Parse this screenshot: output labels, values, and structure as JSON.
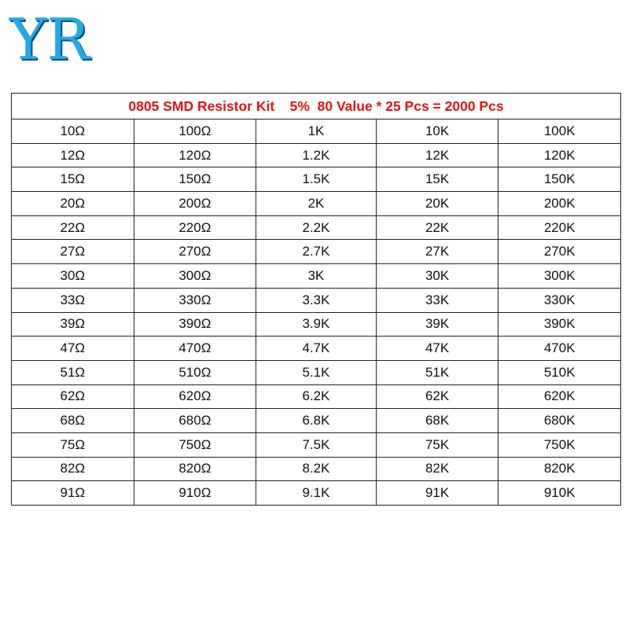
{
  "logo": {
    "text": "YR"
  },
  "table": {
    "title": "0805 SMD Resistor Kit    5%  80 Value * 25 Pcs = 2000 Pcs",
    "rows": [
      [
        "10Ω",
        "100Ω",
        "1K",
        "10K",
        "100K"
      ],
      [
        "12Ω",
        "120Ω",
        "1.2K",
        "12K",
        "120K"
      ],
      [
        "15Ω",
        "150Ω",
        "1.5K",
        "15K",
        "150K"
      ],
      [
        "20Ω",
        "200Ω",
        "2K",
        "20K",
        "200K"
      ],
      [
        "22Ω",
        "220Ω",
        "2.2K",
        "22K",
        "220K"
      ],
      [
        "27Ω",
        "270Ω",
        "2.7K",
        "27K",
        "270K"
      ],
      [
        "30Ω",
        "300Ω",
        "3K",
        "30K",
        "300K"
      ],
      [
        "33Ω",
        "330Ω",
        "3.3K",
        "33K",
        "330K"
      ],
      [
        "39Ω",
        "390Ω",
        "3.9K",
        "39K",
        "390K"
      ],
      [
        "47Ω",
        "470Ω",
        "4.7K",
        "47K",
        "470K"
      ],
      [
        "51Ω",
        "510Ω",
        "5.1K",
        "51K",
        "510K"
      ],
      [
        "62Ω",
        "620Ω",
        "6.2K",
        "62K",
        "620K"
      ],
      [
        "68Ω",
        "680Ω",
        "6.8K",
        "68K",
        "680K"
      ],
      [
        "75Ω",
        "750Ω",
        "7.5K",
        "75K",
        "750K"
      ],
      [
        "82Ω",
        "820Ω",
        "8.2K",
        "82K",
        "820K"
      ],
      [
        "91Ω",
        "910Ω",
        "9.1K",
        "91K",
        "910K"
      ]
    ]
  },
  "colors": {
    "logo": "#22a9e8",
    "title": "#e11414"
  }
}
